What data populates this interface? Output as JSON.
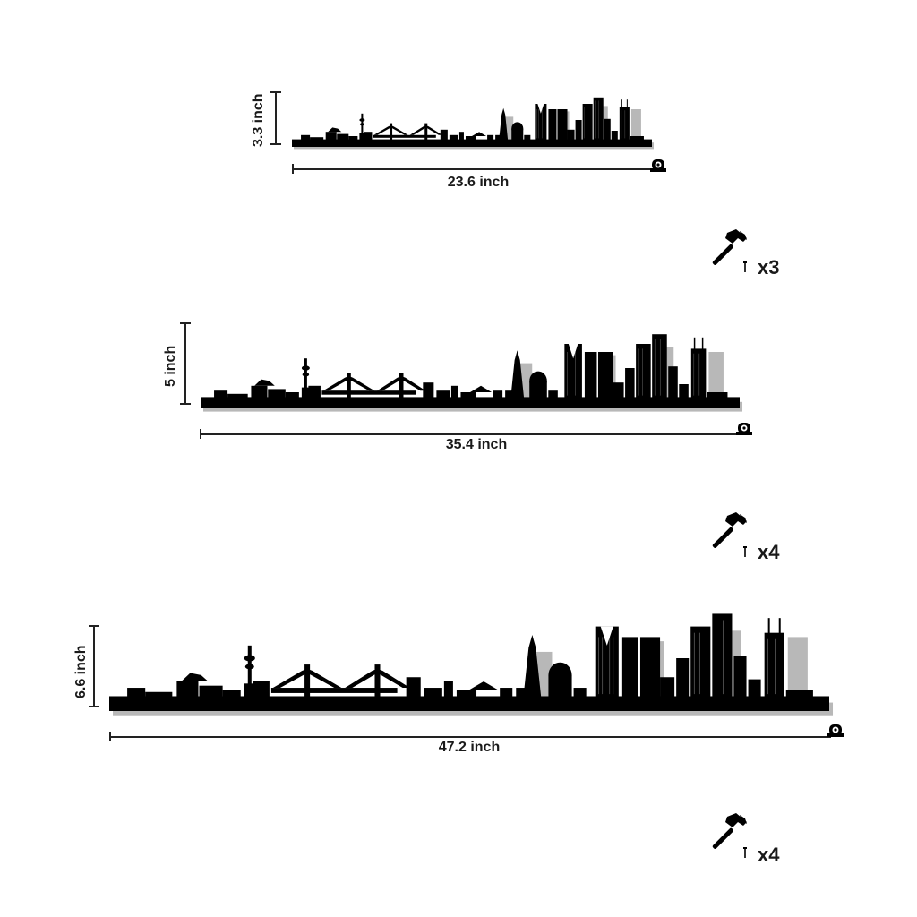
{
  "variants": [
    {
      "height_label": "3.3 inch",
      "width_label": "23.6 inch",
      "nail_quantity": "x3"
    },
    {
      "height_label": "5 inch",
      "width_label": "35.4 inch",
      "nail_quantity": "x4"
    },
    {
      "height_label": "6.6 inch",
      "width_label": "47.2 inch",
      "nail_quantity": "x4"
    }
  ],
  "icons": {
    "hammer": "hammer-icon",
    "nail": "nail-icon",
    "tape": "tape-measure-icon"
  },
  "colors": {
    "silhouette": "#000000",
    "shadow": "#b5b5b5",
    "ink": "#1a1a1a"
  }
}
